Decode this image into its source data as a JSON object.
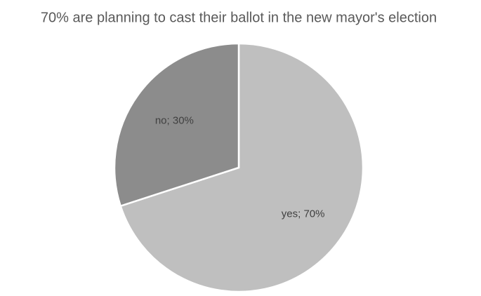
{
  "chart_data": {
    "type": "pie",
    "title": "70% are planning to cast their ballot in the new mayor's election",
    "values": [
      70,
      30
    ],
    "value_labels": [
      "yes; 70%",
      "no; 30%"
    ],
    "colors": [
      "#bfbfbf",
      "#8c8c8c"
    ]
  }
}
